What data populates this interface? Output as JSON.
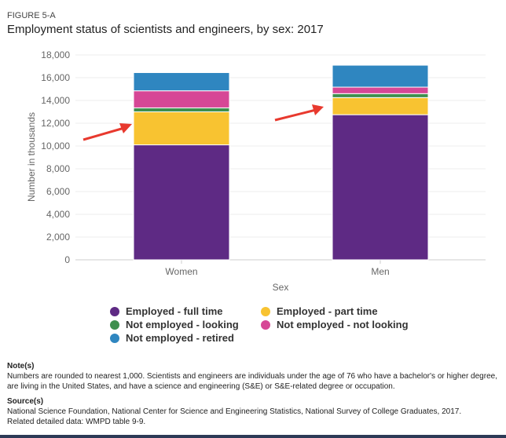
{
  "figure_label": "FIGURE 5-A",
  "title": "Employment status of scientists and engineers, by sex: 2017",
  "chart_data": {
    "type": "bar",
    "stacked": true,
    "title": "Employment status of scientists and engineers, by sex: 2017",
    "xlabel": "Sex",
    "ylabel": "Number in thousands",
    "categories": [
      "Women",
      "Men"
    ],
    "ylim": [
      0,
      18000
    ],
    "yticks": [
      "0",
      "2,000",
      "4,000",
      "6,000",
      "8,000",
      "10,000",
      "12,000",
      "14,000",
      "16,000",
      "18,000"
    ],
    "ytick_values": [
      0,
      2000,
      4000,
      6000,
      8000,
      10000,
      12000,
      14000,
      16000,
      18000
    ],
    "grid": true,
    "legend_placement": "bottom",
    "series": [
      {
        "name": "Employed - full time",
        "color": "#5e2a84",
        "values": [
          10100,
          12750
        ]
      },
      {
        "name": "Employed - part time",
        "color": "#f8c331",
        "values": [
          2900,
          1500
        ]
      },
      {
        "name": "Not employed - looking",
        "color": "#3f8f4e",
        "values": [
          350,
          350
        ]
      },
      {
        "name": "Not employed - not looking",
        "color": "#d64796",
        "values": [
          1500,
          570
        ]
      },
      {
        "name": "Not employed - retired",
        "color": "#2f86c0",
        "values": [
          1600,
          1930
        ]
      }
    ],
    "annotation_color": "#e8392e"
  },
  "legend_order": [
    0,
    1,
    2,
    3,
    4
  ],
  "notes": {
    "heading": "Note(s)",
    "text": "Numbers are rounded to nearest 1,000. Scientists and engineers are individuals under the age of 76 who have a bachelor's or higher degree, are living in the United States, and have a science and engineering (S&E) or S&E-related degree or occupation."
  },
  "sources": {
    "heading": "Source(s)",
    "text": "National Science Foundation, National Center for Science and Engineering Statistics, National Survey of College Graduates, 2017.",
    "related": "Related detailed data: WMPD table 9-9."
  }
}
